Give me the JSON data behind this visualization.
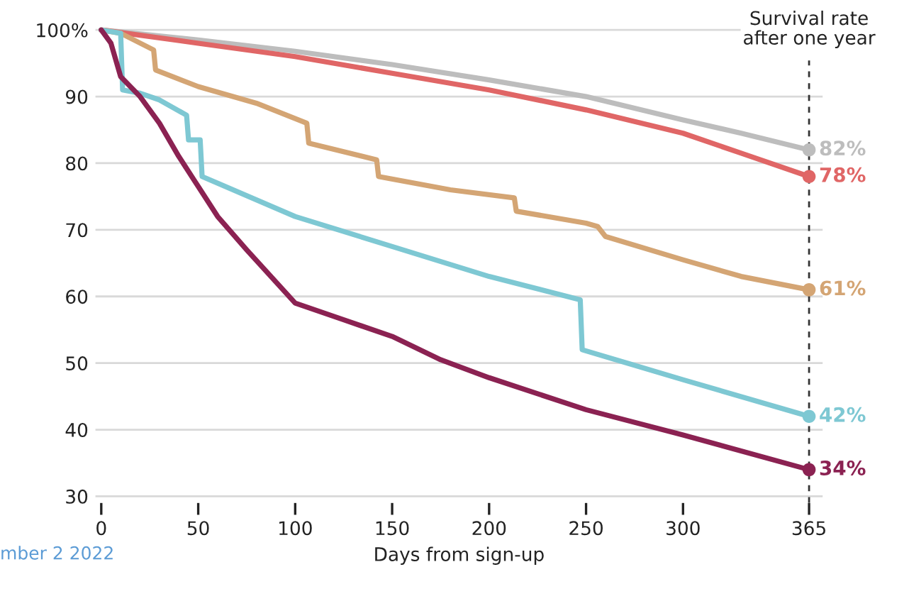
{
  "chart_data": {
    "type": "line",
    "xlabel": "Days from sign-up",
    "xlim": [
      -3,
      372
    ],
    "ylim": [
      29,
      100.4
    ],
    "xticks": [
      0,
      50,
      100,
      150,
      200,
      250,
      300,
      365
    ],
    "yticks": [
      30,
      40,
      50,
      60,
      70,
      80,
      90,
      {
        "value": 100,
        "label": "100%"
      }
    ],
    "grid": "y",
    "ref_lines": [
      {
        "axis": "x",
        "value": 365,
        "label": "Survival rate\nafter one year",
        "line_style": "dashed",
        "color": "#333333"
      }
    ],
    "annotations": [
      "mber 2 2022"
    ],
    "series": [
      {
        "color": "#bdbdbd",
        "x": [
          0,
          50,
          100,
          150,
          200,
          250,
          300,
          330,
          365
        ],
        "values": [
          100,
          98.5,
          96.8,
          94.8,
          92.5,
          90,
          86.5,
          84.5,
          82
        ]
      },
      {
        "color": "#e06666",
        "x": [
          0,
          50,
          100,
          150,
          200,
          250,
          300,
          330,
          365
        ],
        "values": [
          100,
          98,
          96,
          93.5,
          91,
          88,
          84.5,
          81.5,
          78
        ]
      },
      {
        "color": "#d4a574",
        "x": [
          0,
          10,
          27,
          28,
          50,
          80,
          106,
          107,
          142,
          143,
          180,
          213,
          214,
          250,
          256,
          260,
          300,
          330,
          365
        ],
        "values": [
          100,
          99.5,
          97,
          94,
          91.5,
          89,
          86,
          83,
          80.5,
          78,
          76,
          74.8,
          72.8,
          71,
          70.5,
          69,
          65.5,
          63,
          61
        ]
      },
      {
        "color": "#7ec8d3",
        "x": [
          0,
          10,
          11,
          20,
          30,
          44,
          45,
          51,
          52,
          100,
          150,
          200,
          247,
          248,
          300,
          365
        ],
        "values": [
          100,
          99.5,
          91,
          90.5,
          89.5,
          87.2,
          83.5,
          83.5,
          78,
          72,
          67.5,
          63,
          59.5,
          52,
          47.5,
          42
        ]
      },
      {
        "color": "#8b2252",
        "x": [
          0,
          5,
          10,
          20,
          30,
          40,
          50,
          60,
          75,
          100,
          125,
          150,
          175,
          200,
          250,
          300,
          365
        ],
        "values": [
          100,
          98,
          93,
          90,
          86,
          81,
          76.5,
          72,
          67,
          59,
          56.5,
          54,
          50.5,
          47.8,
          43,
          39.2,
          34
        ]
      },
      {
        "type": "scatter",
        "marker": "circle",
        "x": [
          365,
          365,
          365,
          365,
          365
        ],
        "values": [
          82,
          78,
          61,
          42,
          34
        ],
        "colors": [
          "#bdbdbd",
          "#e06666",
          "#d4a574",
          "#7ec8d3",
          "#8b2252"
        ],
        "value_labels": [
          "82%",
          "78%",
          "61%",
          "42%",
          "34%"
        ]
      }
    ]
  }
}
